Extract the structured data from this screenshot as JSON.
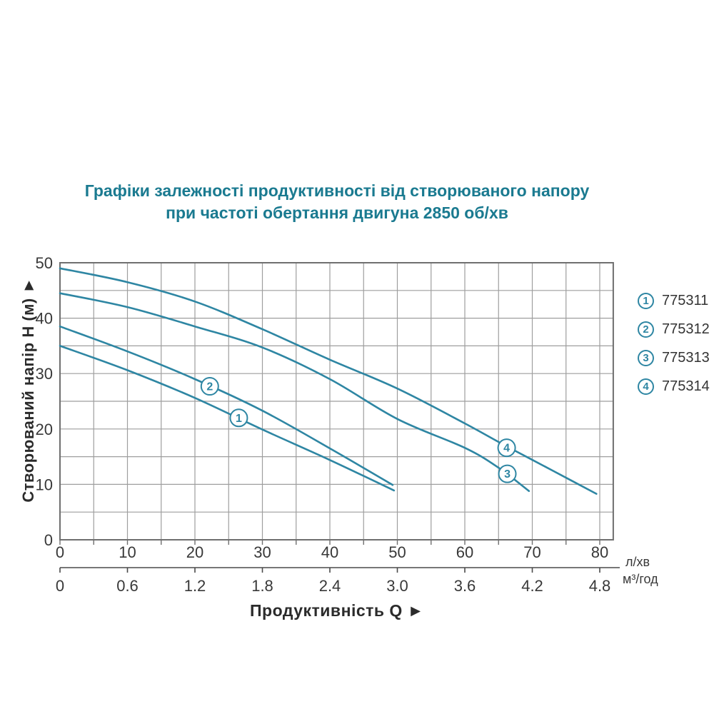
{
  "title": {
    "line1": "Графіки залежності продуктивності від створюваного напору",
    "line2": "при частоті обертання двигуна 2850 об/хв"
  },
  "chart_data": {
    "type": "line",
    "title": "Графіки залежності продуктивності від створюваного напору при частоті обертання двигуна 2850 об/хв",
    "xlabel": "Продуктивність  Q  ►",
    "ylabel": "Створюваний напір H (м) ►",
    "x_axis_primary": {
      "unit": "л/хв",
      "ticks": [
        0,
        10,
        20,
        30,
        40,
        50,
        60,
        70,
        80
      ],
      "minor_step": 5
    },
    "x_axis_secondary": {
      "unit": "м³/год",
      "ticks": [
        "0",
        "0.6",
        "1.2",
        "1.8",
        "2.4",
        "3.0",
        "3.6",
        "4.2",
        "4.8"
      ]
    },
    "y_axis": {
      "ticks": [
        0,
        10,
        20,
        30,
        40,
        50
      ],
      "minor_step": 5
    },
    "xlim": [
      0,
      82
    ],
    "ylim": [
      0,
      50
    ],
    "grid": true,
    "legend_position": "right",
    "series": [
      {
        "marker": "1",
        "model": "775311",
        "points": [
          [
            0,
            35
          ],
          [
            10,
            30.6
          ],
          [
            20,
            25.6
          ],
          [
            30,
            19.9
          ],
          [
            40,
            14.4
          ],
          [
            49.5,
            8.9
          ]
        ],
        "marker_at": [
          26.5,
          22
        ]
      },
      {
        "marker": "2",
        "model": "775312",
        "points": [
          [
            0,
            38.5
          ],
          [
            10,
            34
          ],
          [
            20,
            29
          ],
          [
            30,
            23.3
          ],
          [
            40,
            16.5
          ],
          [
            49.3,
            9.9
          ]
        ],
        "marker_at": [
          22.2,
          27.7
        ]
      },
      {
        "marker": "3",
        "model": "775313",
        "points": [
          [
            0,
            44.5
          ],
          [
            10,
            42
          ],
          [
            20,
            38.5
          ],
          [
            30,
            34.7
          ],
          [
            40,
            29
          ],
          [
            50,
            21.8
          ],
          [
            60,
            16.6
          ],
          [
            65,
            13
          ],
          [
            69.5,
            8.8
          ]
        ],
        "marker_at": [
          66.3,
          11.9
        ]
      },
      {
        "marker": "4",
        "model": "775314",
        "points": [
          [
            0,
            49
          ],
          [
            10,
            46.5
          ],
          [
            20,
            43
          ],
          [
            30,
            38
          ],
          [
            40,
            32.5
          ],
          [
            50,
            27.3
          ],
          [
            60,
            21
          ],
          [
            66,
            17
          ],
          [
            73,
            12.5
          ],
          [
            79.5,
            8.3
          ]
        ],
        "marker_at": [
          66.2,
          16.6
        ]
      }
    ]
  },
  "legend": {
    "items": [
      {
        "num": "1",
        "label": "775311"
      },
      {
        "num": "2",
        "label": "775312"
      },
      {
        "num": "3",
        "label": "775313"
      },
      {
        "num": "4",
        "label": "775314"
      }
    ]
  },
  "colors": {
    "curve": "#2e86a3",
    "title_accent": "#1a7a90",
    "grid": "#9e9e9e",
    "frame": "#6f6f6f",
    "axis2": "#4a4a4a",
    "text": "#383838"
  }
}
